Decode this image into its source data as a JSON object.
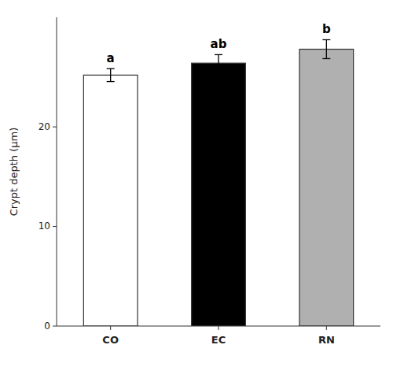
{
  "chart_data": {
    "type": "bar",
    "categories": [
      "CO",
      "EC",
      "RN"
    ],
    "values": [
      25.2,
      26.4,
      27.8
    ],
    "errors": [
      0.65,
      0.85,
      0.95
    ],
    "colors": [
      "#ffffff",
      "#000000",
      "#b0b0b0"
    ],
    "annotations": [
      "a",
      "ab",
      "b"
    ],
    "ylabel": "Crypt depth (μm)",
    "ylim": [
      0,
      31
    ],
    "yticks": [
      0,
      10,
      20
    ],
    "grid": false
  }
}
